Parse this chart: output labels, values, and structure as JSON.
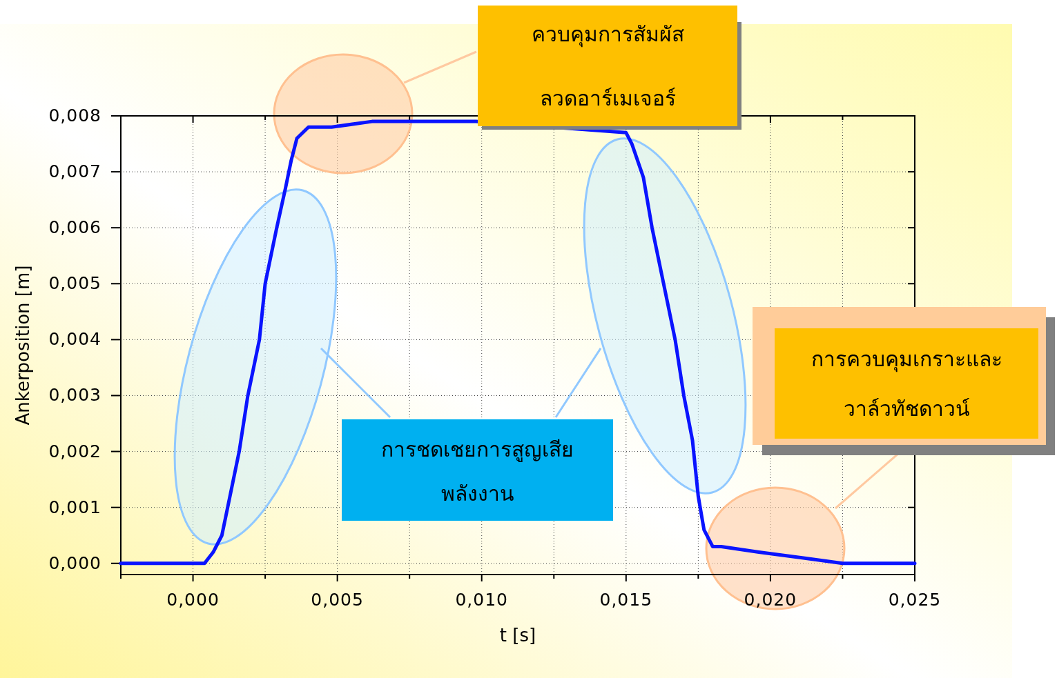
{
  "chart_data": {
    "type": "line",
    "xlabel": "t [s]",
    "ylabel": "Ankerposition [m]",
    "color": "#0a14ff",
    "line_style": "solid",
    "grid": true,
    "xlim": [
      -0.0025,
      0.025
    ],
    "ylim": [
      -0.0002,
      0.008
    ],
    "xticks": [
      {
        "value": -0.0025,
        "label": null
      },
      {
        "value": 0,
        "label": "0,000"
      },
      {
        "value": 0.0025,
        "label": null
      },
      {
        "value": 0.005,
        "label": "0,005"
      },
      {
        "value": 0.0075,
        "label": null
      },
      {
        "value": 0.01,
        "label": "0,010"
      },
      {
        "value": 0.0125,
        "label": null
      },
      {
        "value": 0.015,
        "label": "0,015"
      },
      {
        "value": 0.0175,
        "label": null
      },
      {
        "value": 0.02,
        "label": "0,020"
      },
      {
        "value": 0.0225,
        "label": null
      },
      {
        "value": 0.025,
        "label": "0,025"
      }
    ],
    "yticks": [
      {
        "value": 0,
        "label": "0,000"
      },
      {
        "value": 0.001,
        "label": "0,001"
      },
      {
        "value": 0.002,
        "label": "0,002"
      },
      {
        "value": 0.003,
        "label": "0,003"
      },
      {
        "value": 0.004,
        "label": "0,004"
      },
      {
        "value": 0.005,
        "label": "0,005"
      },
      {
        "value": 0.006,
        "label": "0,006"
      },
      {
        "value": 0.007,
        "label": "0,007"
      },
      {
        "value": 0.008,
        "label": "0,008"
      }
    ],
    "x": [
      -0.0025,
      0,
      0.0004,
      0.0007,
      0.001,
      0.0012,
      0.0016,
      0.0019,
      0.0023,
      0.0025,
      0.0029,
      0.0032,
      0.0034,
      0.0036,
      0.004,
      0.0048,
      0.0062,
      0.0082,
      0.0098,
      0.015,
      0.0152,
      0.0156,
      0.0159,
      0.0163,
      0.0167,
      0.017,
      0.0173,
      0.0175,
      0.0177,
      0.018,
      0.0183,
      0.0196,
      0.0211,
      0.0225,
      0.025
    ],
    "values": [
      0,
      0,
      0,
      0.0002,
      0.0005,
      0.001,
      0.002,
      0.003,
      0.004,
      0.005,
      0.006,
      0.0067,
      0.0072,
      0.0076,
      0.0078,
      0.0078,
      0.0079,
      0.0079,
      0.0079,
      0.0077,
      0.0075,
      0.0069,
      0.006,
      0.005,
      0.004,
      0.003,
      0.0022,
      0.0012,
      0.0006,
      0.0003,
      0.0003,
      0.0002,
      0.0001,
      0,
      0
    ],
    "annotations": [
      "ควบคุมการสัมผัส\nลวดอาร์เมเจอร์",
      "การชดเชยการสูญเสีย\nพลังงาน",
      "การควบคุมเกราะและ\nวาล์วทัชดาวน์"
    ]
  }
}
